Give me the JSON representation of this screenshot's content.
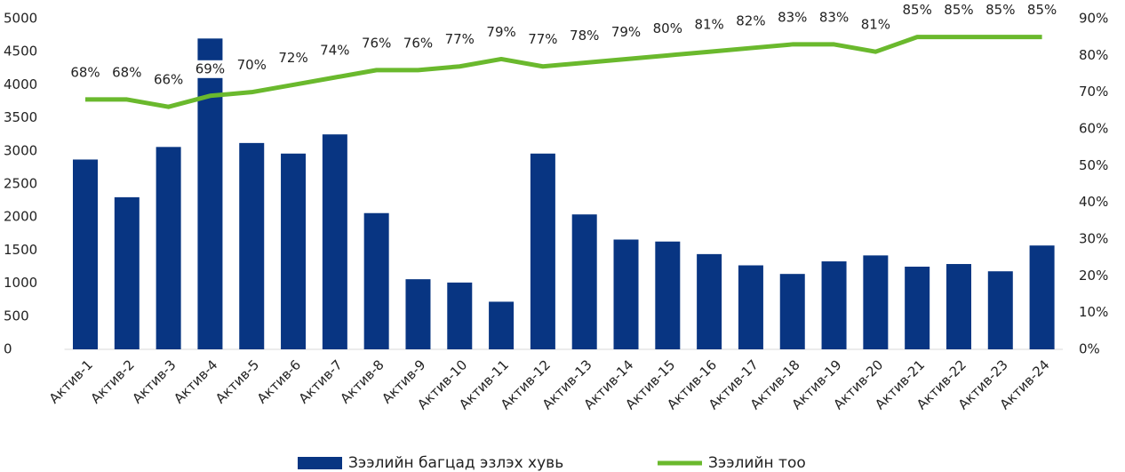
{
  "chart_data": {
    "type": "bar",
    "categories": [
      "Актив-1",
      "Актив-2",
      "Актив-3",
      "Актив-4",
      "Актив-5",
      "Актив-6",
      "Актив-7",
      "Актив-8",
      "Актив-9",
      "Актив-10",
      "Актив-11",
      "Актив-12",
      "Актив-13",
      "Актив-14",
      "Актив-15",
      "Актив-16",
      "Актив-17",
      "Актив-18",
      "Актив-19",
      "Актив-20",
      "Актив-21",
      "Актив-22",
      "Актив-23",
      "Актив-24"
    ],
    "series": [
      {
        "name": "Зээлийн багцад эзлэх хувь",
        "color": "#083582",
        "type": "bar",
        "values": [
          2870,
          2300,
          3060,
          4700,
          3120,
          2960,
          3250,
          2060,
          1060,
          1010,
          720,
          2960,
          2040,
          1660,
          1630,
          1440,
          1270,
          1140,
          1330,
          1420,
          1250,
          1290,
          1180,
          1570
        ]
      },
      {
        "name": "Зээлийн тоо",
        "color": "#6ab92d",
        "type": "line",
        "axis": "y2",
        "values": [
          68,
          68,
          66,
          69,
          70,
          72,
          74,
          76,
          76,
          77,
          79,
          77,
          78,
          79,
          80,
          81,
          82,
          83,
          83,
          81,
          85,
          85,
          85,
          85
        ],
        "value_labels": [
          "68%",
          "68%",
          "66%",
          "69%",
          "70%",
          "72%",
          "74%",
          "76%",
          "76%",
          "77%",
          "79%",
          "77%",
          "78%",
          "79%",
          "80%",
          "81%",
          "82%",
          "83%",
          "83%",
          "81%",
          "85%",
          "85%",
          "85%",
          "85%"
        ]
      }
    ],
    "ylim": [
      0,
      5000
    ],
    "yticks": [
      0,
      500,
      1000,
      1500,
      2000,
      2500,
      3000,
      3500,
      4000,
      4500,
      5000
    ],
    "y2lim": [
      0,
      90
    ],
    "y2ticks": [
      {
        "value": 0,
        "label": "0%"
      },
      {
        "value": 10,
        "label": "10%"
      },
      {
        "value": 20,
        "label": "20%"
      },
      {
        "value": 30,
        "label": "30%"
      },
      {
        "value": 40,
        "label": "40%"
      },
      {
        "value": 50,
        "label": "50%"
      },
      {
        "value": 60,
        "label": "60%"
      },
      {
        "value": 70,
        "label": "70%"
      },
      {
        "value": 80,
        "label": "80%"
      },
      {
        "value": 90,
        "label": "90%"
      }
    ],
    "legend": "bottom"
  }
}
